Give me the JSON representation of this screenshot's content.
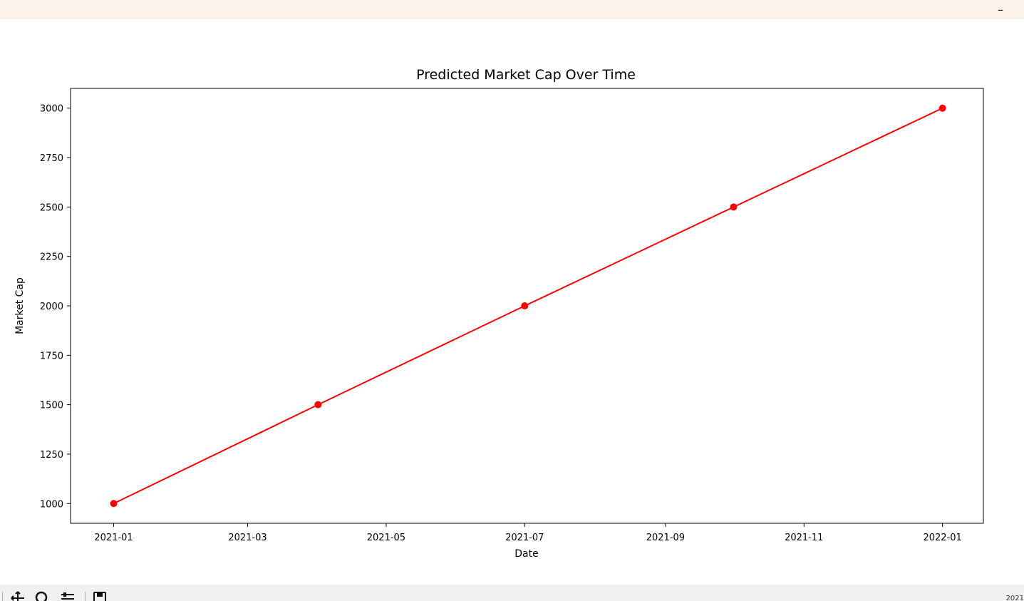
{
  "window": {
    "minimize_glyph": "–"
  },
  "toolbar": {
    "icons": [
      "pan-icon",
      "zoom-icon",
      "configure-subplots-icon",
      "save-icon"
    ],
    "coord_readout": "2021"
  },
  "chart_data": {
    "type": "line",
    "title": "Predicted Market Cap Over Time",
    "xlabel": "Date",
    "ylabel": "Market Cap",
    "x": [
      "2021-01-01",
      "2021-04-01",
      "2021-07-01",
      "2021-10-01",
      "2022-01-01"
    ],
    "series": [
      {
        "values": [
          1000,
          1500,
          2000,
          2500,
          3000
        ],
        "color": "#ff0000",
        "marker": "circle"
      }
    ],
    "x_ticks": [
      "2021-01",
      "2021-03",
      "2021-05",
      "2021-07",
      "2021-09",
      "2021-11",
      "2022-01"
    ],
    "x_tick_dates": [
      "2021-01-01",
      "2021-03-01",
      "2021-05-01",
      "2021-07-01",
      "2021-09-01",
      "2021-11-01",
      "2022-01-01"
    ],
    "y_ticks": [
      1000,
      1250,
      1500,
      1750,
      2000,
      2250,
      2500,
      2750,
      3000
    ],
    "xlim": [
      "2020-12-13",
      "2022-01-19"
    ],
    "ylim": [
      900,
      3100
    ],
    "grid": false,
    "legend": "none"
  }
}
